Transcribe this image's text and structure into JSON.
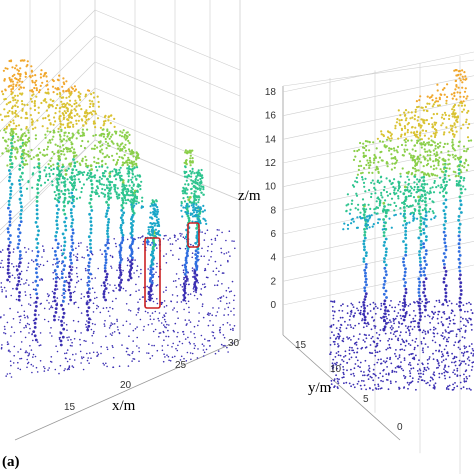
{
  "panel_label": "(a)",
  "chart_data": [
    {
      "type": "scatter",
      "view": "oblique 3D point cloud",
      "x_axis": {
        "label": "x/m",
        "ticks": [
          "15",
          "20",
          "25",
          "30"
        ]
      },
      "y_axis": {
        "label": "",
        "ticks": []
      },
      "z_axis": {
        "label": "",
        "ticks": []
      },
      "colormap": [
        "#3b2fb2",
        "#2f6ee0",
        "#1aa6c8",
        "#2ec48f",
        "#8bcf4a",
        "#d9c232",
        "#f0a72c"
      ],
      "highlight_boxes": 2,
      "highlight_color": "#cc2222",
      "grid": true
    },
    {
      "type": "scatter",
      "view": "side 3D point cloud",
      "x_axis": {
        "label": "",
        "ticks": []
      },
      "y_axis": {
        "label": "y/m",
        "ticks": [
          "0",
          "5",
          "10",
          "15"
        ]
      },
      "z_axis": {
        "label": "z/m",
        "ticks": [
          "0",
          "2",
          "4",
          "6",
          "8",
          "10",
          "12",
          "14",
          "16",
          "18"
        ],
        "range": [
          0,
          18
        ]
      },
      "colormap": [
        "#3b2fb2",
        "#2f6ee0",
        "#1aa6c8",
        "#2ec48f",
        "#8bcf4a",
        "#d9c232",
        "#f0a72c"
      ],
      "grid": true
    }
  ]
}
